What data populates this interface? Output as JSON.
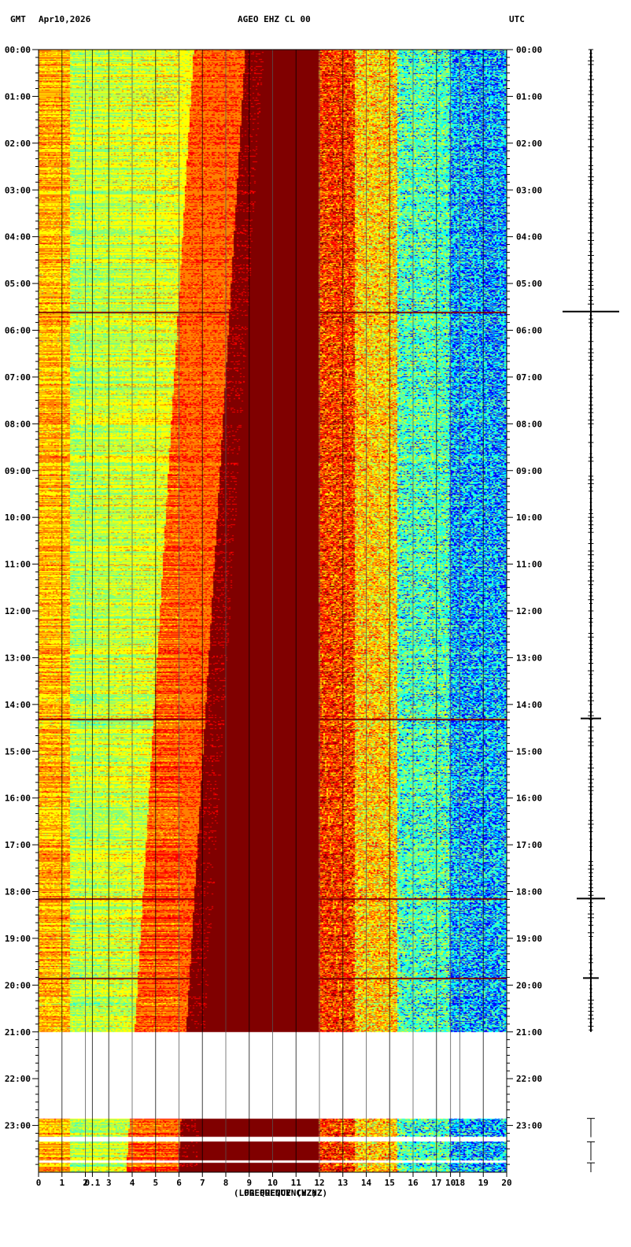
{
  "header": {
    "left_tz": "GMT",
    "date": "Apr10,2026",
    "station": "AGEO EHZ CL 00",
    "right_tz": "UTC"
  },
  "chart_data": {
    "type": "heatmap",
    "title": "AGEO EHZ CL 00",
    "xlabel": "FREQUENCY (HZ)",
    "xlabel_overlap": "(LOG FREQUENCY HZ)",
    "xlim": [
      0,
      20
    ],
    "x_ticks": [
      "0",
      "1",
      "2",
      "0.1",
      "3",
      "4",
      "5",
      "6",
      "7",
      "8",
      "9",
      "10",
      "11",
      "12",
      "13",
      "14",
      "15",
      "16",
      "17",
      "10",
      "18",
      "19",
      "20"
    ],
    "x_tick_values": [
      0,
      1,
      2,
      2.3,
      3,
      4,
      5,
      6,
      7,
      8,
      9,
      10,
      11,
      12,
      13,
      14,
      15,
      16,
      17,
      17.6,
      18,
      19,
      20
    ],
    "y_ticks": [
      "00:00",
      "01:00",
      "02:00",
      "03:00",
      "04:00",
      "05:00",
      "06:00",
      "07:00",
      "08:00",
      "09:00",
      "10:00",
      "11:00",
      "12:00",
      "13:00",
      "14:00",
      "15:00",
      "16:00",
      "17:00",
      "18:00",
      "19:00",
      "20:00",
      "21:00",
      "22:00",
      "23:00"
    ],
    "ylim_hours": [
      0,
      24
    ],
    "data_end_hour": 21.0,
    "gap_end_hour": 22.85,
    "partial_blocks_hours": [
      [
        22.85,
        23.25
      ],
      [
        23.35,
        23.75
      ],
      [
        23.8,
        24.0
      ]
    ],
    "events_hours": [
      5.6,
      14.3,
      18.15,
      19.85
    ],
    "colormap": [
      "#0000ff",
      "#00ffff",
      "#7fff7f",
      "#ffff00",
      "#ff7f00",
      "#ff0000",
      "#800000"
    ]
  }
}
